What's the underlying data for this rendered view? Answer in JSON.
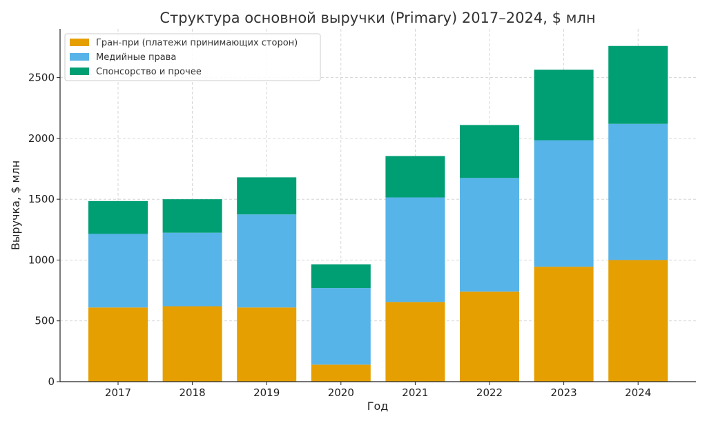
{
  "chart_data": {
    "type": "bar",
    "stacked": true,
    "title": "Структура основной выручки (Primary) 2017–2024, $ млн",
    "xlabel": "Год",
    "ylabel": "Выручка, $ млн",
    "ylim": [
      0,
      2900
    ],
    "yticks": [
      0,
      500,
      1000,
      1500,
      2000,
      2500
    ],
    "grid": true,
    "legend_position": "top-left",
    "categories": [
      "2017",
      "2018",
      "2019",
      "2020",
      "2021",
      "2022",
      "2023",
      "2024"
    ],
    "series": [
      {
        "name": "Гран-при (платежи принимающих сторон)",
        "color": "#E69F00",
        "values": [
          610,
          620,
          610,
          140,
          655,
          740,
          945,
          1000
        ]
      },
      {
        "name": "Медийные права",
        "color": "#56B4E9",
        "values": [
          605,
          605,
          765,
          630,
          860,
          935,
          1040,
          1120
        ]
      },
      {
        "name": "Спонсорство и прочее",
        "color": "#009E73",
        "values": [
          270,
          275,
          305,
          195,
          340,
          435,
          580,
          640
        ]
      }
    ]
  }
}
